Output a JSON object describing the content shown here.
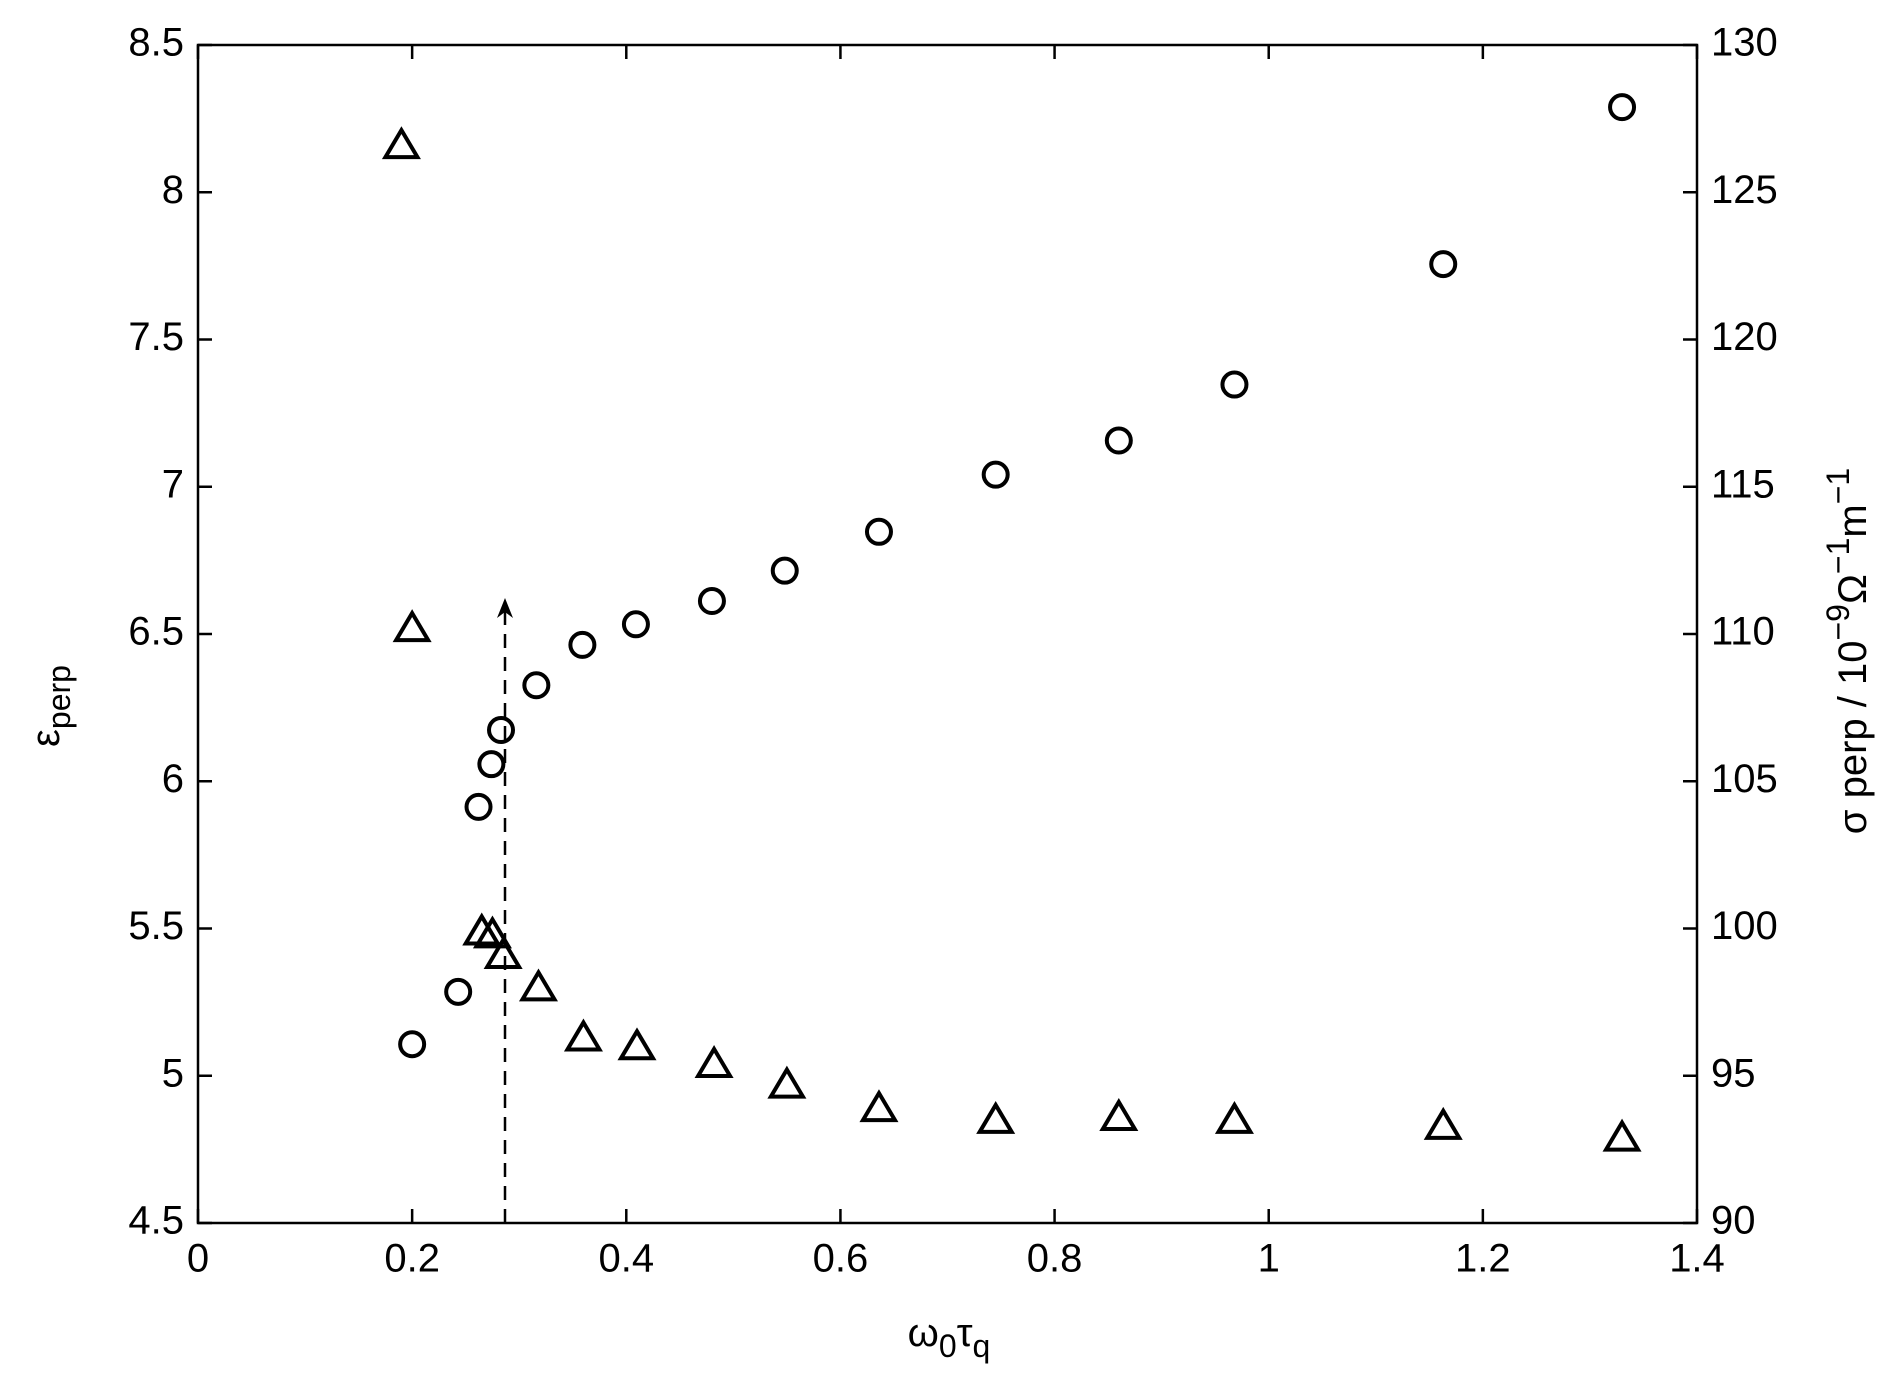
{
  "chart_data": {
    "type": "scatter",
    "xlabel": [
      "ω",
      "0",
      "τ",
      "q"
    ],
    "ylabel": [
      "ε",
      "perp"
    ],
    "y2label": [
      "σ perp / 10",
      "−9",
      "Ω",
      "−1",
      "m",
      "−1"
    ],
    "xlim": [
      0,
      1.4
    ],
    "xticks": [
      0,
      0.2,
      0.4,
      0.6,
      0.8,
      1,
      1.2,
      1.4
    ],
    "ylim": [
      4.5,
      8.5
    ],
    "yticks": [
      4.5,
      5,
      5.5,
      6,
      6.5,
      7,
      7.5,
      8,
      8.5
    ],
    "y2lim": [
      90,
      130
    ],
    "y2ticks": [
      90,
      95,
      100,
      105,
      110,
      115,
      120,
      125,
      130
    ],
    "series": [
      {
        "marker": "triangle",
        "color": "#000000",
        "x": [
          0.19,
          0.2,
          0.265,
          0.275,
          0.285,
          0.318,
          0.36,
          0.41,
          0.482,
          0.55,
          0.636,
          0.745,
          0.86,
          0.968,
          1.163,
          1.33
        ],
        "values": [
          8.16,
          6.52,
          5.49,
          5.48,
          5.41,
          5.3,
          5.13,
          5.1,
          5.04,
          4.97,
          4.89,
          4.85,
          4.86,
          4.85,
          4.83,
          4.79
        ]
      },
      {
        "marker": "circle",
        "color": "#000000",
        "axis": "y2",
        "x": [
          0.2,
          0.243,
          0.262,
          0.274,
          0.283,
          0.316,
          0.359,
          0.409,
          0.48,
          0.548,
          0.636,
          0.745,
          0.86,
          0.968,
          1.163,
          1.33
        ],
        "values": [
          96.07,
          97.85,
          104.13,
          105.58,
          106.74,
          108.26,
          109.63,
          110.33,
          111.12,
          112.15,
          113.47,
          115.41,
          116.57,
          118.47,
          122.56,
          127.89
        ]
      }
    ]
  }
}
